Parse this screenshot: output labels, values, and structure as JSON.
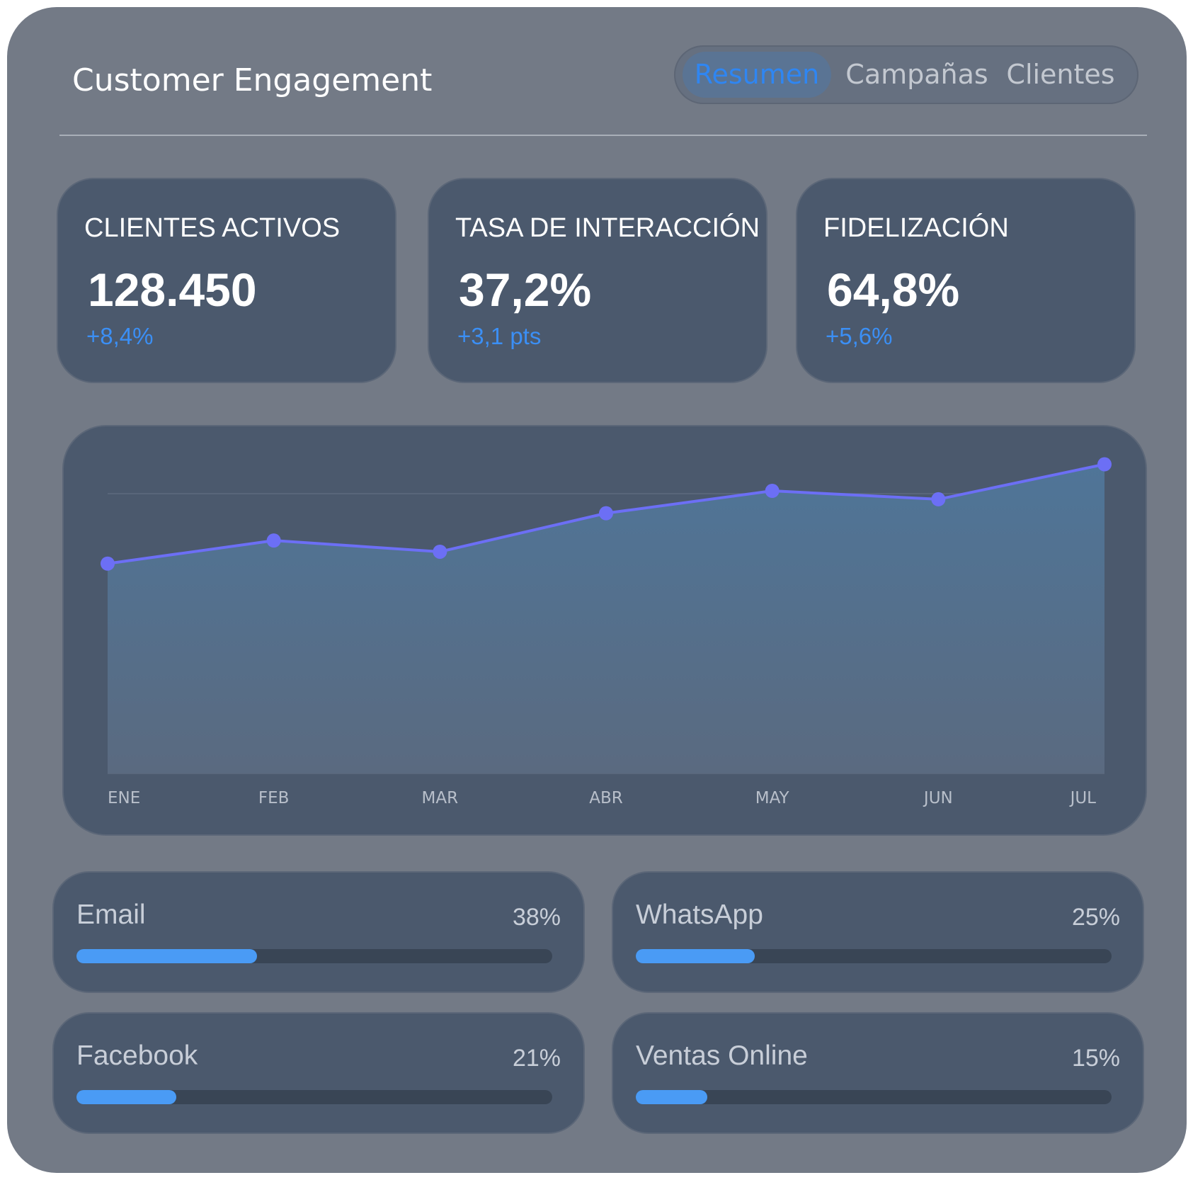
{
  "header": {
    "title": "Customer Engagement",
    "tabs": [
      {
        "label": "Resumen",
        "active": true
      },
      {
        "label": "Campañas",
        "active": false
      },
      {
        "label": "Clientes",
        "active": false
      }
    ]
  },
  "kpis": [
    {
      "label": "CLIENTES ACTIVOS",
      "value": "128.450",
      "delta": "+8,4%"
    },
    {
      "label": "TASA DE INTERACCIÓN",
      "value": "37,2%",
      "delta": "+3,1 pts"
    },
    {
      "label": "FIDELIZACIÓN",
      "value": "64,8%",
      "delta": "+5,6%"
    }
  ],
  "chart_data": {
    "type": "area",
    "categories": [
      "ENE",
      "FEB",
      "MAR",
      "ABR",
      "MAY",
      "JUN",
      "JUL"
    ],
    "series": [
      {
        "values": [
          3.0,
          3.33,
          3.17,
          3.72,
          4.04,
          3.92,
          4.42
        ]
      }
    ],
    "ylim": [
      0,
      4
    ],
    "grid": true,
    "line_color": "#6c6ff5",
    "title": "",
    "xlabel": "",
    "ylabel": ""
  },
  "channels": [
    {
      "name": "Email",
      "pct": "38%",
      "fraction": 0.38
    },
    {
      "name": "WhatsApp",
      "pct": "25%",
      "fraction": 0.25
    },
    {
      "name": "Facebook",
      "pct": "21%",
      "fraction": 0.21
    },
    {
      "name": "Ventas Online",
      "pct": "15%",
      "fraction": 0.15
    }
  ],
  "colors": {
    "panel": "#737a86",
    "card": "#4b596d",
    "accent": "#3b8ff5",
    "bar": "#4a9bf5"
  }
}
